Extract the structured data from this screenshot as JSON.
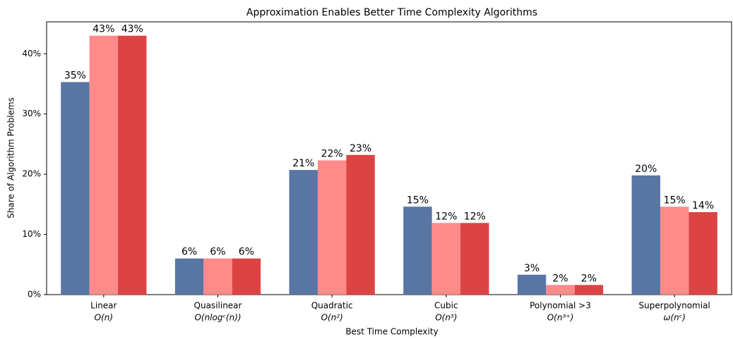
{
  "chart_data": {
    "type": "bar",
    "title": "Approximation Enables Better Time Complexity Algorithms",
    "x_label": "Best Time Complexity",
    "y_label": "Share of Algorithm Problems",
    "categories": [
      "Linear",
      "Quasilinear",
      "Quadratic",
      "Cubic",
      "Polynomial >3",
      "Superpolynomial"
    ],
    "category_notations": [
      "O(n)",
      "O(nlogᶜ(n))",
      "O(n²)",
      "O(n³)",
      "O(n³⁺)",
      "ω(nᶜ)"
    ],
    "series": [
      {
        "color": "#5875a4",
        "values": [
          35.3,
          6.0,
          20.7,
          14.6,
          3.3,
          19.8
        ],
        "value_labels": [
          "35%",
          "6%",
          "21%",
          "15%",
          "3%",
          "20%"
        ]
      },
      {
        "color": "#ff8a8a",
        "values": [
          43.0,
          6.0,
          22.3,
          11.9,
          1.6,
          14.6
        ],
        "value_labels": [
          "43%",
          "6%",
          "22%",
          "12%",
          "2%",
          "15%"
        ]
      },
      {
        "color": "#dc4444",
        "values": [
          43.0,
          6.0,
          23.2,
          11.9,
          1.6,
          13.7
        ],
        "value_labels": [
          "43%",
          "6%",
          "23%",
          "12%",
          "2%",
          "14%"
        ]
      }
    ],
    "ylim": [
      0,
      45.3
    ],
    "yticks": [
      {
        "value": 0,
        "label": "0%"
      },
      {
        "value": 10,
        "label": "10%"
      },
      {
        "value": 20,
        "label": "20%"
      },
      {
        "value": 30,
        "label": "30%"
      },
      {
        "value": 40,
        "label": "40%"
      }
    ]
  }
}
